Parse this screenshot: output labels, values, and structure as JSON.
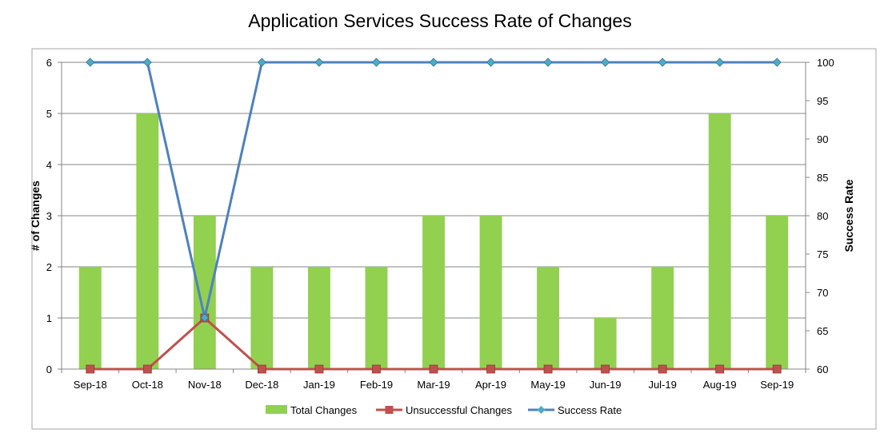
{
  "chart_data": {
    "type": "bar",
    "title": "Application Services Success Rate of Changes",
    "categories": [
      "Sep-18",
      "Oct-18",
      "Nov-18",
      "Dec-18",
      "Jan-19",
      "Feb-19",
      "Mar-19",
      "Apr-19",
      "May-19",
      "Jun-19",
      "Jul-19",
      "Aug-19",
      "Sep-19"
    ],
    "ylabel": "# of Changes",
    "y2label": "Success Rate",
    "ylim": [
      0,
      6
    ],
    "y2lim": [
      60,
      100
    ],
    "yticks": [
      0,
      1,
      2,
      3,
      4,
      5,
      6
    ],
    "y2ticks": [
      60,
      65,
      70,
      75,
      80,
      85,
      90,
      95,
      100
    ],
    "grid": true,
    "legend_position": "bottom",
    "series": [
      {
        "name": "Total Changes",
        "type": "bar",
        "axis": "left",
        "color": "#92d050",
        "values": [
          2,
          5,
          3,
          2,
          2,
          2,
          3,
          3,
          2,
          1,
          2,
          5,
          3
        ]
      },
      {
        "name": "Unsuccessful Changes",
        "type": "line",
        "axis": "left",
        "color": "#c0504d",
        "marker": "square",
        "values": [
          0,
          0,
          1,
          0,
          0,
          0,
          0,
          0,
          0,
          0,
          0,
          0,
          0
        ]
      },
      {
        "name": "Success Rate",
        "type": "line",
        "axis": "right",
        "color": "#4f81bd",
        "marker": "diamond",
        "values": [
          100,
          100,
          66.7,
          100,
          100,
          100,
          100,
          100,
          100,
          100,
          100,
          100,
          100
        ]
      }
    ]
  }
}
